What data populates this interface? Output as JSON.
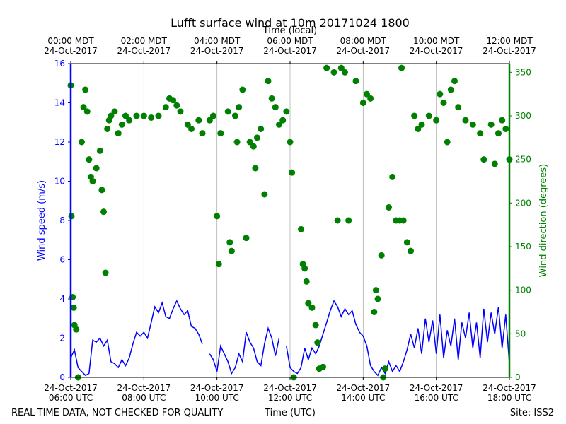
{
  "chart_data": {
    "type": "line",
    "title": "Lufft surface wind at 10m 20171024 1800",
    "x2_label": "Time (local)",
    "xlabel": "Time (UTC)",
    "footer_left": "REAL-TIME DATA, NOT CHECKED FOR QUALITY",
    "footer_right": "Site: ISS2",
    "ylabel": "Wind speed (m/s)",
    "y2label": "Wind direction (degrees)",
    "xlim": [
      6,
      18
    ],
    "xticks": [
      {
        "value": 6,
        "label": "24-Oct-2017\n06:00 UTC"
      },
      {
        "value": 8,
        "label": "24-Oct-2017\n08:00 UTC"
      },
      {
        "value": 10,
        "label": "24-Oct-2017\n10:00 UTC"
      },
      {
        "value": 12,
        "label": "24-Oct-2017\n12:00 UTC"
      },
      {
        "value": 14,
        "label": "24-Oct-2017\n14:00 UTC"
      },
      {
        "value": 16,
        "label": "24-Oct-2017\n16:00 UTC"
      },
      {
        "value": 18,
        "label": "24-Oct-2017\n18:00 UTC"
      }
    ],
    "x2ticks": [
      {
        "value": 6,
        "label": "00:00 MDT\n24-Oct-2017"
      },
      {
        "value": 8,
        "label": "02:00 MDT\n24-Oct-2017"
      },
      {
        "value": 10,
        "label": "04:00 MDT\n24-Oct-2017"
      },
      {
        "value": 12,
        "label": "06:00 MDT\n24-Oct-2017"
      },
      {
        "value": 14,
        "label": "08:00 MDT\n24-Oct-2017"
      },
      {
        "value": 16,
        "label": "10:00 MDT\n24-Oct-2017"
      },
      {
        "value": 18,
        "label": "12:00 MDT\n24-Oct-2017"
      }
    ],
    "ylim": [
      0,
      16
    ],
    "yticks": [
      0,
      2,
      4,
      6,
      8,
      10,
      12,
      14,
      16
    ],
    "y2lim": [
      0,
      360
    ],
    "y2ticks": [
      0,
      50,
      100,
      150,
      200,
      250,
      300,
      350
    ],
    "grid": "x",
    "series": [
      {
        "name": "Wind speed",
        "color": "#0000ff",
        "kind": "line",
        "x": [
          6.0,
          6.1,
          6.2,
          6.3,
          6.4,
          6.5,
          6.6,
          6.7,
          6.8,
          6.9,
          7.0,
          7.1,
          7.2,
          7.3,
          7.4,
          7.5,
          7.6,
          7.7,
          7.8,
          7.9,
          8.0,
          8.1,
          8.2,
          8.3,
          8.4,
          8.5,
          8.6,
          8.7,
          8.8,
          8.9,
          9.0,
          9.1,
          9.2,
          9.3,
          9.4,
          9.5,
          9.6,
          9.7,
          9.8,
          9.9,
          10.0,
          10.1,
          10.2,
          10.3,
          10.4,
          10.5,
          10.6,
          10.7,
          10.8,
          10.9,
          11.0,
          11.1,
          11.2,
          11.3,
          11.4,
          11.5,
          11.6,
          11.7,
          11.8,
          11.9,
          12.0,
          12.1,
          12.2,
          12.3,
          12.4,
          12.5,
          12.6,
          12.7,
          12.8,
          12.9,
          13.0,
          13.1,
          13.2,
          13.3,
          13.4,
          13.5,
          13.6,
          13.7,
          13.8,
          13.9,
          14.0,
          14.1,
          14.2,
          14.3,
          14.4,
          14.5,
          14.6,
          14.7,
          14.8,
          14.9,
          15.0,
          15.1,
          15.2,
          15.3,
          15.4,
          15.5,
          15.6,
          15.7,
          15.8,
          15.9,
          16.0,
          16.1,
          16.2,
          16.3,
          16.4,
          16.5,
          16.6,
          16.7,
          16.8,
          16.9,
          17.0,
          17.1,
          17.2,
          17.3,
          17.4,
          17.5,
          17.6,
          17.7,
          17.8,
          17.9,
          18.0
        ],
        "values": [
          1.0,
          1.4,
          0.5,
          0.3,
          0.1,
          0.2,
          1.9,
          1.8,
          2.0,
          1.6,
          1.9,
          0.8,
          0.7,
          0.5,
          0.9,
          0.6,
          1.0,
          1.7,
          2.3,
          2.1,
          2.3,
          2.0,
          2.8,
          3.6,
          3.3,
          3.8,
          3.1,
          3.0,
          3.5,
          3.9,
          3.5,
          3.2,
          3.4,
          2.6,
          2.5,
          2.2,
          1.7,
          null,
          1.2,
          0.9,
          0.3,
          1.6,
          1.2,
          0.8,
          0.2,
          0.5,
          1.2,
          0.8,
          2.3,
          1.8,
          1.5,
          0.8,
          0.6,
          1.7,
          2.5,
          2.0,
          1.1,
          2.0,
          null,
          1.6,
          0.5,
          0.3,
          0.2,
          0.5,
          1.5,
          0.9,
          1.5,
          1.2,
          1.6,
          2.2,
          2.8,
          3.4,
          3.9,
          3.6,
          3.1,
          3.5,
          3.2,
          3.4,
          2.7,
          2.3,
          2.1,
          1.6,
          0.6,
          0.3,
          0.1,
          0.5,
          0.2,
          0.8,
          0.3,
          0.6,
          0.3,
          0.8,
          1.4,
          2.2,
          1.5,
          2.5,
          1.2,
          3.0,
          1.8,
          2.9,
          1.2,
          3.2,
          1.0,
          2.4,
          1.6,
          3.0,
          0.9,
          2.8,
          2.0,
          3.3,
          1.5,
          2.8,
          1.0,
          3.5,
          1.8,
          3.3,
          2.2,
          3.6,
          1.5,
          3.2,
          0.7
        ]
      },
      {
        "name": "Wind direction",
        "color": "#008000",
        "kind": "scatter",
        "axis": "y2",
        "x": [
          6.0,
          6.02,
          6.05,
          6.08,
          6.1,
          6.15,
          6.2,
          6.3,
          6.35,
          6.4,
          6.45,
          6.5,
          6.55,
          6.6,
          6.7,
          6.8,
          6.85,
          6.9,
          6.95,
          7.0,
          7.05,
          7.1,
          7.2,
          7.3,
          7.4,
          7.5,
          7.6,
          7.8,
          8.0,
          8.2,
          8.4,
          8.6,
          8.7,
          8.8,
          8.9,
          9.0,
          9.2,
          9.3,
          9.5,
          9.6,
          9.8,
          9.9,
          10.0,
          10.05,
          10.1,
          10.3,
          10.35,
          10.4,
          10.5,
          10.55,
          10.6,
          10.7,
          10.8,
          10.9,
          11.0,
          11.05,
          11.1,
          11.2,
          11.3,
          11.4,
          11.5,
          11.6,
          11.7,
          11.8,
          11.9,
          12.0,
          12.05,
          12.1,
          12.3,
          12.35,
          12.4,
          12.45,
          12.5,
          12.6,
          12.7,
          12.75,
          12.8,
          12.9,
          13.0,
          13.2,
          13.3,
          13.4,
          13.5,
          13.6,
          13.8,
          14.0,
          14.1,
          14.2,
          14.3,
          14.35,
          14.4,
          14.5,
          14.55,
          14.6,
          14.7,
          14.8,
          14.9,
          15.0,
          15.05,
          15.1,
          15.2,
          15.3,
          15.4,
          15.5,
          15.6,
          15.8,
          16.0,
          16.1,
          16.2,
          16.3,
          16.4,
          16.5,
          16.6,
          16.8,
          17.0,
          17.2,
          17.3,
          17.5,
          17.6,
          17.7,
          17.8,
          17.9,
          18.0
        ],
        "values": [
          335,
          185,
          92,
          80,
          60,
          55,
          0,
          270,
          310,
          330,
          305,
          250,
          230,
          225,
          240,
          260,
          215,
          190,
          120,
          285,
          295,
          300,
          305,
          280,
          290,
          300,
          295,
          300,
          300,
          298,
          300,
          310,
          320,
          318,
          312,
          305,
          290,
          285,
          295,
          280,
          295,
          300,
          185,
          130,
          280,
          305,
          155,
          145,
          300,
          270,
          310,
          330,
          160,
          270,
          265,
          240,
          275,
          285,
          210,
          340,
          320,
          310,
          290,
          295,
          305,
          270,
          235,
          0,
          170,
          130,
          125,
          110,
          85,
          80,
          60,
          40,
          10,
          12,
          355,
          350,
          180,
          355,
          350,
          180,
          340,
          315,
          325,
          320,
          75,
          100,
          90,
          140,
          0,
          10,
          195,
          230,
          180,
          180,
          355,
          180,
          155,
          145,
          300,
          285,
          290,
          300,
          295,
          325,
          315,
          270,
          330,
          340,
          310,
          295,
          290,
          280,
          250,
          290,
          245,
          280,
          295,
          285,
          250
        ]
      }
    ]
  }
}
